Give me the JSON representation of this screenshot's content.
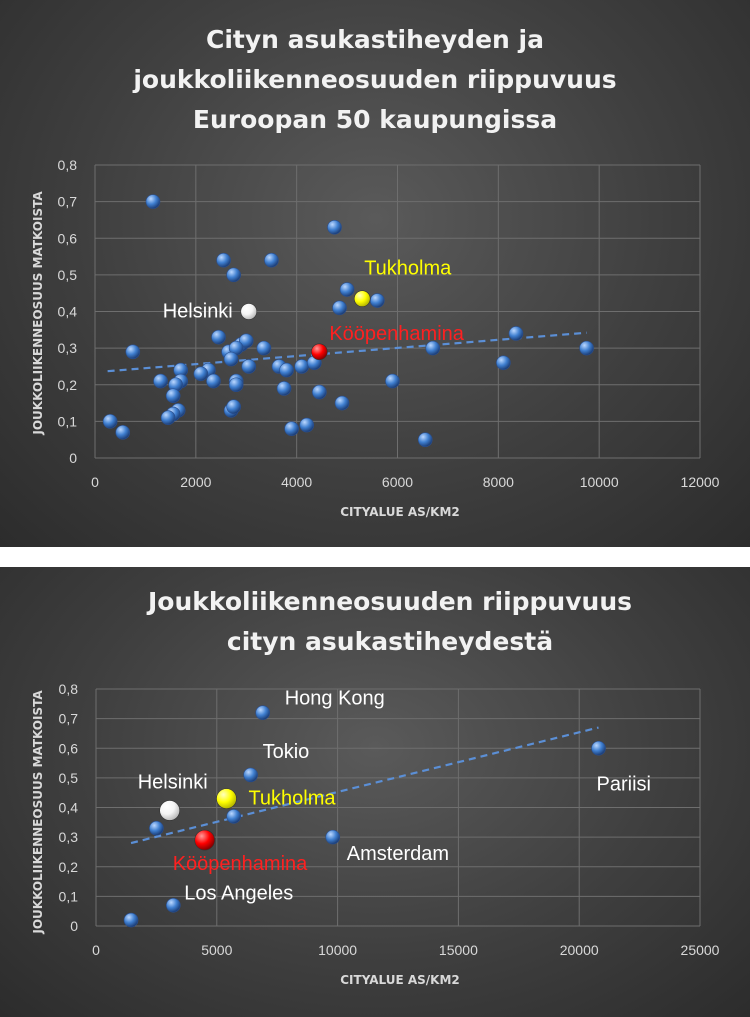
{
  "chart_data": [
    {
      "type": "scatter",
      "title": [
        "Cityn asukastiheyden ja",
        "joukkoliikenneosuuden riippuvuus",
        "Euroopan 50 kaupungissa"
      ],
      "xlabel": "CITYALUE AS/KM2",
      "ylabel": "JOUKKOLIIKENNEOSUUS MATKOISTA",
      "xlim": [
        0,
        12000
      ],
      "ylim": [
        0,
        0.8
      ],
      "x_ticks": [
        "0",
        "2000",
        "4000",
        "6000",
        "8000",
        "10000",
        "12000"
      ],
      "y_ticks": [
        "0",
        "0,1",
        "0,2",
        "0,3",
        "0,4",
        "0,5",
        "0,6",
        "0,7",
        "0,8"
      ],
      "grid": true,
      "points": [
        {
          "x": 1150,
          "y": 0.7
        },
        {
          "x": 4750,
          "y": 0.63
        },
        {
          "x": 2550,
          "y": 0.54
        },
        {
          "x": 3500,
          "y": 0.54
        },
        {
          "x": 2750,
          "y": 0.5
        },
        {
          "x": 5000,
          "y": 0.46
        },
        {
          "x": 5600,
          "y": 0.43
        },
        {
          "x": 4850,
          "y": 0.41
        },
        {
          "x": 2450,
          "y": 0.33
        },
        {
          "x": 2900,
          "y": 0.31
        },
        {
          "x": 3000,
          "y": 0.32
        },
        {
          "x": 750,
          "y": 0.29
        },
        {
          "x": 2650,
          "y": 0.29
        },
        {
          "x": 2800,
          "y": 0.3
        },
        {
          "x": 3350,
          "y": 0.3
        },
        {
          "x": 2700,
          "y": 0.27
        },
        {
          "x": 3050,
          "y": 0.25
        },
        {
          "x": 3650,
          "y": 0.25
        },
        {
          "x": 3800,
          "y": 0.24
        },
        {
          "x": 4100,
          "y": 0.25
        },
        {
          "x": 4350,
          "y": 0.26
        },
        {
          "x": 1700,
          "y": 0.24
        },
        {
          "x": 2250,
          "y": 0.24
        },
        {
          "x": 2100,
          "y": 0.23
        },
        {
          "x": 1300,
          "y": 0.21
        },
        {
          "x": 1700,
          "y": 0.21
        },
        {
          "x": 1600,
          "y": 0.2
        },
        {
          "x": 2350,
          "y": 0.21
        },
        {
          "x": 2800,
          "y": 0.21
        },
        {
          "x": 2800,
          "y": 0.2
        },
        {
          "x": 3750,
          "y": 0.19
        },
        {
          "x": 1550,
          "y": 0.17
        },
        {
          "x": 4450,
          "y": 0.18
        },
        {
          "x": 5900,
          "y": 0.21
        },
        {
          "x": 4900,
          "y": 0.15
        },
        {
          "x": 1650,
          "y": 0.13
        },
        {
          "x": 1550,
          "y": 0.12
        },
        {
          "x": 1450,
          "y": 0.11
        },
        {
          "x": 2700,
          "y": 0.13
        },
        {
          "x": 2750,
          "y": 0.14
        },
        {
          "x": 300,
          "y": 0.1
        },
        {
          "x": 550,
          "y": 0.07
        },
        {
          "x": 3900,
          "y": 0.08
        },
        {
          "x": 4200,
          "y": 0.09
        },
        {
          "x": 6550,
          "y": 0.05
        },
        {
          "x": 6700,
          "y": 0.3
        },
        {
          "x": 8100,
          "y": 0.26
        },
        {
          "x": 8350,
          "y": 0.34
        },
        {
          "x": 9750,
          "y": 0.3
        }
      ],
      "highlights": [
        {
          "label": "Helsinki",
          "x": 3050,
          "y": 0.4,
          "color": "#ffffff",
          "label_color": "#ffffff"
        },
        {
          "label": "Tukholma",
          "x": 5300,
          "y": 0.435,
          "color": "#ffff00",
          "label_color": "#ffff00"
        },
        {
          "label": "Kööpenhamina",
          "x": 4450,
          "y": 0.29,
          "color": "#ff0000",
          "label_color": "#ff2020"
        }
      ],
      "trendline": {
        "x": [
          250,
          9750
        ],
        "y": [
          0.237,
          0.342
        ]
      }
    },
    {
      "type": "scatter",
      "title": [
        "Joukkoliikenneosuuden riippuvuus",
        "cityn asukastiheydestä"
      ],
      "xlabel": "CITYALUE AS/KM2",
      "ylabel": "JOUKKOLIIKENNEOSUUS MATKOISTA",
      "xlim": [
        0,
        25000
      ],
      "ylim": [
        0,
        0.8
      ],
      "x_ticks": [
        "0",
        "5000",
        "10000",
        "15000",
        "20000",
        "25000"
      ],
      "y_ticks": [
        "0",
        "0,1",
        "0,2",
        "0,3",
        "0,4",
        "0,5",
        "0,6",
        "0,7",
        "0,8"
      ],
      "grid": true,
      "points": [
        {
          "label": "Hong Kong",
          "x": 6900,
          "y": 0.72
        },
        {
          "label": "Tokio",
          "x": 6400,
          "y": 0.51
        },
        {
          "label": "Pariisi",
          "x": 20800,
          "y": 0.6
        },
        {
          "label": "Amsterdam",
          "x": 9800,
          "y": 0.3
        },
        {
          "label": "Los Angeles",
          "x": 3200,
          "y": 0.07
        },
        {
          "label": "",
          "x": 2500,
          "y": 0.33
        },
        {
          "label": "",
          "x": 5700,
          "y": 0.37
        },
        {
          "label": "",
          "x": 1450,
          "y": 0.02
        }
      ],
      "highlights": [
        {
          "label": "Helsinki",
          "x": 3050,
          "y": 0.39,
          "color": "#ffffff",
          "label_color": "#ffffff"
        },
        {
          "label": "Tukholma",
          "x": 5400,
          "y": 0.43,
          "color": "#ffff00",
          "label_color": "#ffff00"
        },
        {
          "label": "Kööpenhamina",
          "x": 4500,
          "y": 0.29,
          "color": "#ff0000",
          "label_color": "#ff2020"
        }
      ],
      "trendline": {
        "x": [
          1450,
          20800
        ],
        "y": [
          0.28,
          0.67
        ]
      }
    }
  ]
}
